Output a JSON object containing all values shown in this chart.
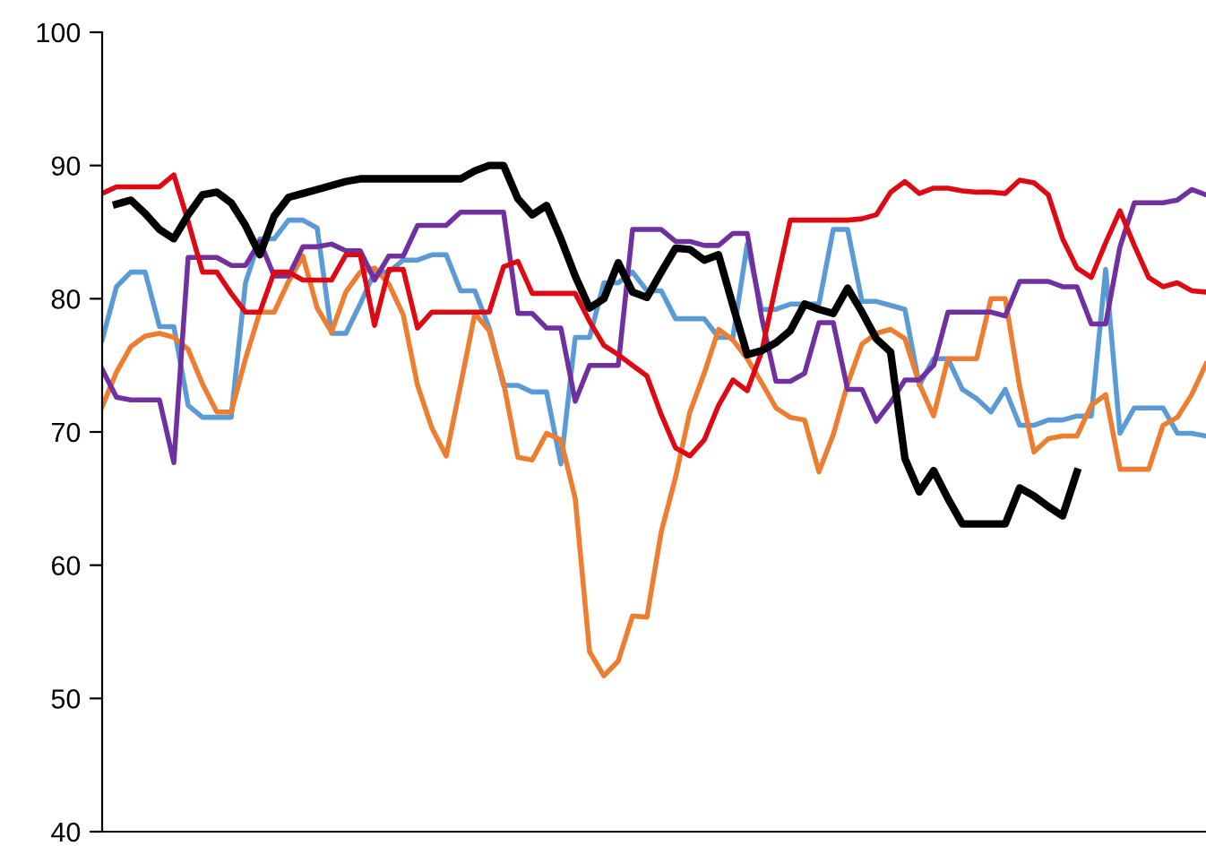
{
  "chart_data": {
    "type": "line",
    "categories": [
      null,
      null,
      null,
      null,
      null,
      null,
      null,
      null,
      null,
      null,
      null,
      null,
      null,
      null,
      null,
      null,
      null,
      null,
      null,
      null,
      null,
      null,
      null,
      null,
      null,
      null,
      null,
      null,
      null,
      null,
      null,
      null,
      null,
      null,
      null,
      null,
      null,
      null,
      null,
      null,
      null,
      null,
      null,
      null,
      null,
      null,
      null,
      null,
      null,
      null,
      null,
      null,
      null,
      null,
      null,
      null,
      null,
      null,
      null,
      null,
      null,
      null,
      null,
      null,
      null,
      null,
      null,
      null,
      null,
      null,
      null,
      null,
      null,
      null,
      null,
      null,
      null,
      null
    ],
    "ylim": [
      40,
      100
    ],
    "yticks": [
      40,
      50,
      60,
      70,
      80,
      90,
      100
    ],
    "tick_labels": "y",
    "grid": false,
    "marker": "none",
    "line_style": "solid",
    "series": [
      {
        "color": "#5b9bd5",
        "values": [
          76.9,
          80.9,
          82,
          82,
          77.9,
          77.9,
          72,
          71.1,
          71.1,
          71.1,
          81.2,
          84.5,
          84.5,
          85.9,
          85.9,
          85.3,
          77.4,
          77.4,
          79.6,
          82,
          82,
          82.9,
          82.9,
          83.3,
          83.3,
          80.6,
          80.6,
          77.8,
          73.5,
          73.5,
          73,
          73,
          67.6,
          77.1,
          77.1,
          81.2,
          81.2,
          82,
          80.6,
          80.6,
          78.5,
          78.5,
          78.5,
          77.1,
          77.1,
          84.1,
          79.2,
          79.2,
          79.6,
          79.6,
          79.6,
          85.2,
          85.2,
          79.8,
          79.8,
          79.5,
          79.2,
          73.5,
          75.5,
          75.5,
          73.2,
          72.5,
          71.5,
          73.2,
          70.5,
          70.5,
          70.9,
          70.9,
          71.2,
          71.2,
          82.2,
          69.9,
          71.8,
          71.8,
          71.8,
          69.9,
          69.9,
          69.7
        ]
      },
      {
        "color": "#ed7d31",
        "values": [
          71.9,
          74.5,
          76.4,
          77.2,
          77.4,
          77.1,
          76.2,
          73.6,
          71.5,
          71.5,
          75.5,
          79,
          79,
          81.3,
          83.2,
          79.3,
          77.5,
          80.5,
          82,
          82.3,
          81.1,
          78.8,
          73.5,
          70.3,
          68.2,
          73.5,
          78.9,
          77.6,
          73.7,
          68.1,
          67.9,
          69.9,
          69.4,
          65,
          53.5,
          51.7,
          52.8,
          56.2,
          56.1,
          62.5,
          66.6,
          71.5,
          74.4,
          77.7,
          76.9,
          75.5,
          73.7,
          71.8,
          71.1,
          70.9,
          67,
          69.8,
          73.6,
          76.6,
          77.4,
          77.7,
          77,
          73.6,
          71.2,
          75.5,
          75.5,
          75.5,
          80,
          80,
          73.4,
          68.5,
          69.5,
          69.7,
          69.7,
          72,
          72.8,
          67.2,
          67.2,
          67.2,
          70.5,
          71.1,
          72.8,
          75.1
        ]
      },
      {
        "color": "#7030a0",
        "values": [
          74.7,
          72.6,
          72.4,
          72.4,
          72.4,
          67.7,
          83.1,
          83.1,
          83.1,
          82.5,
          82.5,
          84.3,
          81.7,
          81.7,
          83.9,
          83.9,
          84.1,
          83.6,
          83.6,
          81.4,
          83.2,
          83.2,
          85.5,
          85.5,
          85.5,
          86.5,
          86.5,
          86.5,
          86.5,
          78.9,
          78.9,
          77.8,
          77.8,
          72.3,
          75,
          75,
          75,
          85.2,
          85.2,
          85.2,
          84.3,
          84.3,
          84,
          84,
          84.9,
          84.9,
          78.6,
          73.8,
          73.8,
          74.4,
          78.2,
          78.2,
          73.2,
          73.2,
          70.8,
          72.2,
          73.9,
          73.9,
          75,
          79,
          79,
          79,
          79,
          78.7,
          81.3,
          81.3,
          81.3,
          80.9,
          80.9,
          78.1,
          78.1,
          83.9,
          87.2,
          87.2,
          87.2,
          87.4,
          88.2,
          87.8
        ]
      },
      {
        "color": "#dd0a14",
        "values": [
          87.9,
          88.4,
          88.4,
          88.4,
          88.4,
          89.3,
          85.8,
          82,
          82,
          80.4,
          79,
          79,
          82,
          82,
          81.4,
          81.4,
          81.4,
          83.3,
          83.3,
          78,
          82.2,
          82.2,
          77.8,
          79,
          79,
          79,
          79,
          79,
          82.4,
          82.8,
          80.4,
          80.4,
          80.4,
          80.4,
          78.3,
          76.5,
          75.8,
          75,
          74.2,
          71.3,
          68.8,
          68.2,
          69.4,
          72,
          73.9,
          73.1,
          76,
          81,
          85.9,
          85.9,
          85.9,
          85.9,
          85.9,
          86,
          86.3,
          88,
          88.8,
          87.9,
          88.3,
          88.3,
          88.1,
          88,
          88,
          87.9,
          88.9,
          88.7,
          87.8,
          84.5,
          82.3,
          81.6,
          84.2,
          86.6,
          84,
          81.6,
          80.9,
          81.2,
          80.6,
          80.5
        ]
      },
      {
        "color": "#000000",
        "values": [
          null,
          87.1,
          87.4,
          86.4,
          85.2,
          84.5,
          86.3,
          87.8,
          88,
          87.2,
          85.5,
          83.3,
          86.2,
          87.6,
          87.9,
          88.2,
          88.5,
          88.8,
          89,
          89,
          89,
          89,
          89,
          89,
          89,
          89,
          89.6,
          90,
          90,
          87.5,
          86.3,
          87,
          84.5,
          81.7,
          79.3,
          80,
          82.7,
          80.5,
          80.1,
          82,
          83.8,
          83.7,
          82.9,
          83.3,
          79.5,
          75.8,
          76.1,
          76.7,
          77.6,
          79.6,
          79.2,
          78.9,
          80.8,
          79,
          77,
          76,
          68,
          65.5,
          67.1,
          65,
          63.1,
          63.1,
          63.1,
          63.1,
          65.8,
          65.2,
          64.4,
          63.7,
          67,
          null,
          null,
          null,
          null,
          null,
          null,
          null,
          null,
          null
        ]
      }
    ]
  }
}
